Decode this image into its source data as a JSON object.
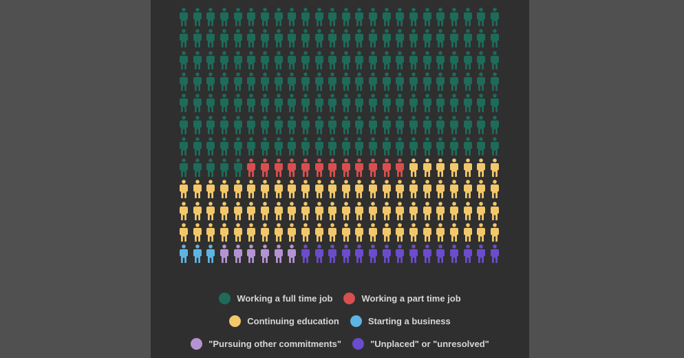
{
  "chart_data": {
    "type": "pictograph",
    "units_per_row": 24,
    "rows": 12,
    "categories": [
      "Working a full time job",
      "Working a part time job",
      "Continuing education",
      "Starting a business",
      "\"Pursuing other commitments\"",
      "\"Unplaced\" or \"unresolved\""
    ],
    "values": [
      173,
      12,
      79,
      3,
      6,
      15
    ],
    "colors": [
      "#1e6b5a",
      "#d94f4f",
      "#f2c86b",
      "#5db4e3",
      "#b593d3",
      "#6a4ccd"
    ]
  },
  "legend": {
    "items": [
      {
        "label": "Working a full time job",
        "color": "#1e6b5a"
      },
      {
        "label": "Working a part time job",
        "color": "#d94f4f"
      },
      {
        "label": "Continuing education",
        "color": "#f2c86b"
      },
      {
        "label": "Starting a business",
        "color": "#5db4e3"
      },
      {
        "label": "\"Pursuing other commitments\"",
        "color": "#b593d3"
      },
      {
        "label": "\"Unplaced\" or \"unresolved\"",
        "color": "#6a4ccd"
      }
    ]
  }
}
